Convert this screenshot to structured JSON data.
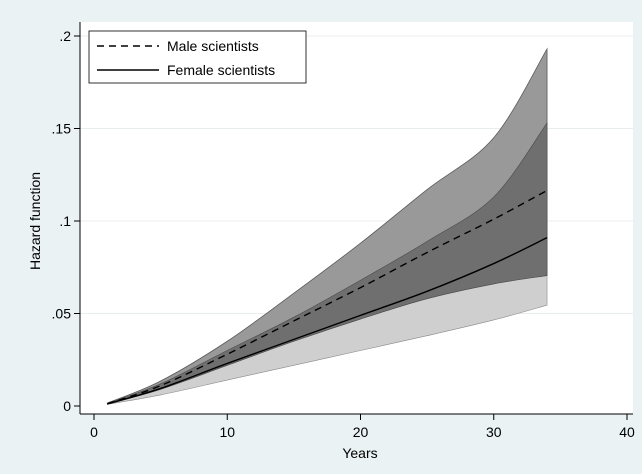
{
  "chart_data": {
    "type": "area",
    "xlabel": "Years",
    "ylabel": "Hazard function",
    "xlim": [
      0,
      40
    ],
    "ylim": [
      0,
      0.2
    ],
    "x_ticks": [
      {
        "value": 0,
        "label": "0"
      },
      {
        "value": 10,
        "label": "10"
      },
      {
        "value": 20,
        "label": "20"
      },
      {
        "value": 30,
        "label": "30"
      },
      {
        "value": 40,
        "label": "40"
      }
    ],
    "y_ticks": [
      {
        "value": 0,
        "label": "0"
      },
      {
        "value": 0.05,
        "label": ".05"
      },
      {
        "value": 0.1,
        "label": ".1"
      },
      {
        "value": 0.15,
        "label": ".15"
      },
      {
        "value": 0.2,
        "label": ".2"
      }
    ],
    "grid": "horizontal",
    "legend_position": "top-left",
    "x": [
      1,
      5,
      10,
      15,
      20,
      25,
      30,
      34
    ],
    "series": [
      {
        "name": "Male scientists",
        "line_style": "dashed",
        "color": "#000000",
        "values": [
          0.0012,
          0.011,
          0.028,
          0.046,
          0.064,
          0.083,
          0.101,
          0.1165
        ],
        "ci_lower": [
          0.001,
          0.009,
          0.022,
          0.035,
          0.047,
          0.058,
          0.066,
          0.0705
        ],
        "ci_upper": [
          0.0016,
          0.0135,
          0.035,
          0.061,
          0.088,
          0.117,
          0.145,
          0.193
        ]
      },
      {
        "name": "Female scientists",
        "line_style": "solid",
        "color": "#000000",
        "values": [
          0.0011,
          0.0095,
          0.023,
          0.036,
          0.049,
          0.062,
          0.077,
          0.091
        ],
        "ci_lower": [
          0.0009,
          0.006,
          0.014,
          0.022,
          0.03,
          0.038,
          0.0465,
          0.0545
        ],
        "ci_upper": [
          0.0014,
          0.012,
          0.03,
          0.048,
          0.068,
          0.089,
          0.113,
          0.153
        ]
      }
    ],
    "colors": {
      "outer_band": "#999999",
      "inner_band": "#6f6f6f",
      "lower_band": "#cfcfcf",
      "plot_background": "#ffffff",
      "page_background": "#eaf2f3",
      "grid": "#e8eef0"
    }
  }
}
